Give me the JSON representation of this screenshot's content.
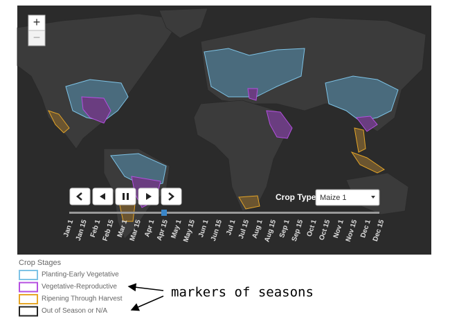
{
  "zoom": {
    "in": "+",
    "out": "−"
  },
  "crop_type": {
    "label": "Crop Type:",
    "selected": "Maize 1"
  },
  "timeline": {
    "dates": [
      "Jan 1",
      "Jan 15",
      "Feb 1",
      "Feb 15",
      "Mar 1",
      "Mar 15",
      "Apr 1",
      "Apr 15",
      "May 1",
      "May 15",
      "Jun 1",
      "Jun 15",
      "Jul 1",
      "Jul 15",
      "Aug 1",
      "Aug 15",
      "Sep 1",
      "Sep 15",
      "Oct 1",
      "Oct 15",
      "Nov 1",
      "Nov 15",
      "Dec 1",
      "Dec 15"
    ]
  },
  "legend": {
    "title": "Crop Stages",
    "items": [
      {
        "label": "Planting-Early Vegetative",
        "color": "#7ec3e6"
      },
      {
        "label": "Vegetative-Reproductive",
        "color": "#b44fe0"
      },
      {
        "label": "Ripening Through Harvest",
        "color": "#e6a627"
      },
      {
        "label": "Out of Season or N/A",
        "color": "#222222"
      }
    ]
  },
  "annotation": {
    "text": "markers of seasons"
  }
}
